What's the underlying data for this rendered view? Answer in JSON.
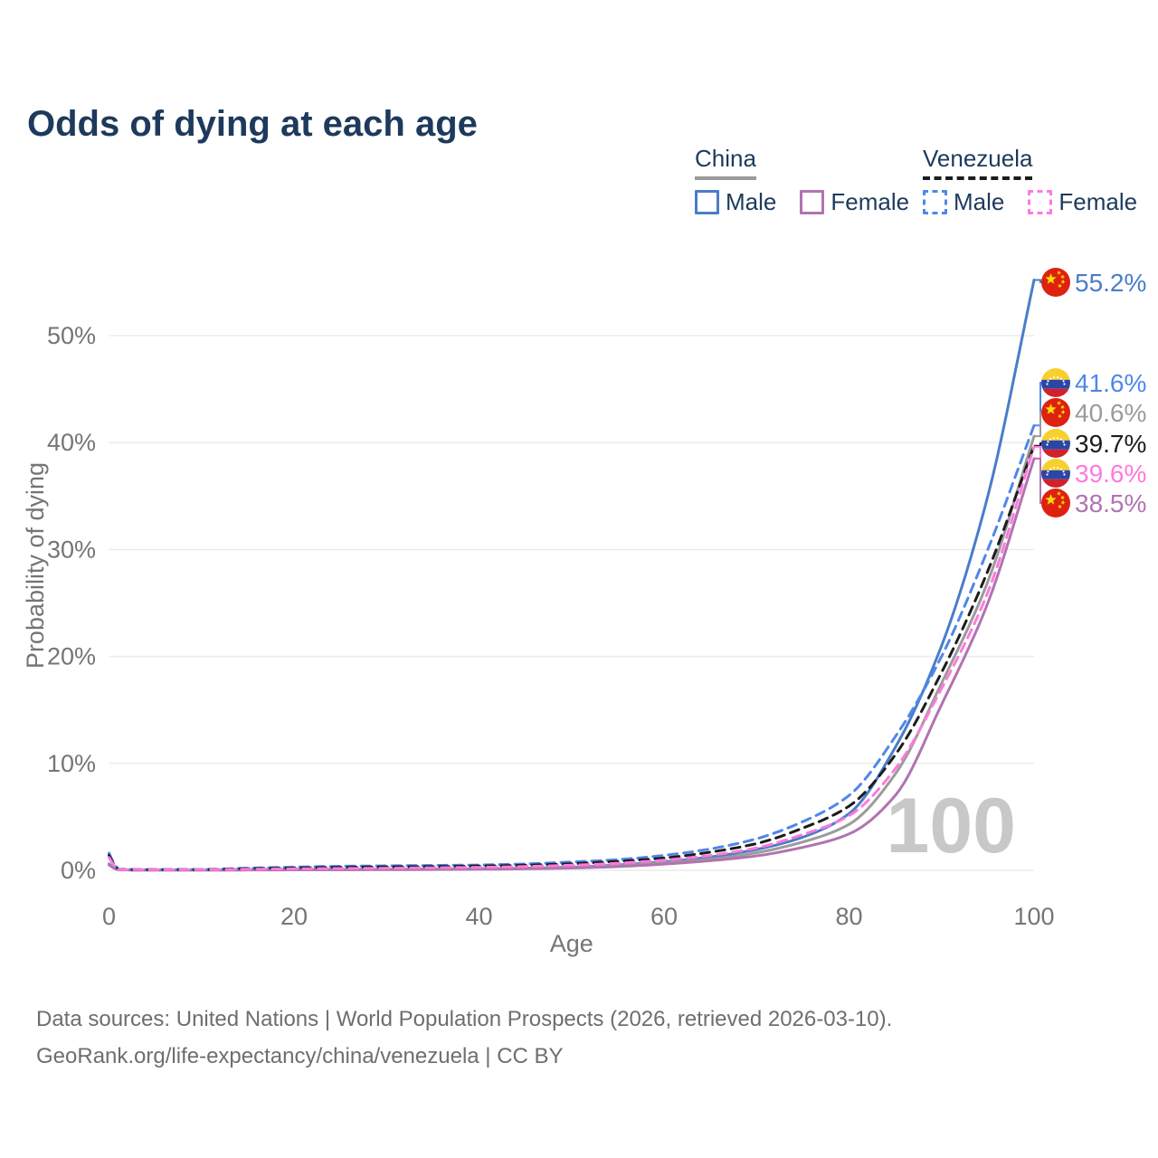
{
  "title": "Odds of dying at each age",
  "legend": {
    "groups": [
      {
        "name": "China",
        "line_style": "solid",
        "header_line_color": "#9a9a9a",
        "items": [
          {
            "label": "Male",
            "color": "#4a7dc9"
          },
          {
            "label": "Female",
            "color": "#b273b0"
          }
        ]
      },
      {
        "name": "Venezuela",
        "line_style": "dashed",
        "header_line_color": "#1c1c1c",
        "items": [
          {
            "label": "Male",
            "color": "#4e87ea"
          },
          {
            "label": "Female",
            "color": "#ff79dc"
          }
        ]
      }
    ]
  },
  "chart_data": {
    "type": "line",
    "title": "Odds of dying at each age",
    "xlabel": "Age",
    "ylabel": "Probability of dying",
    "xlim": [
      0,
      100
    ],
    "ylim": [
      0,
      56
    ],
    "x_ticks": [
      0,
      20,
      40,
      60,
      80,
      100
    ],
    "y_ticks": [
      {
        "value": 0,
        "label": "0%"
      },
      {
        "value": 10,
        "label": "10%"
      },
      {
        "value": 20,
        "label": "20%"
      },
      {
        "value": 30,
        "label": "30%"
      },
      {
        "value": 40,
        "label": "40%"
      },
      {
        "value": 50,
        "label": "50%"
      }
    ],
    "grid": "horizontal-only",
    "legend_position": "top-right",
    "hover_age_watermark": "100",
    "x": [
      0,
      1,
      5,
      10,
      15,
      20,
      25,
      30,
      35,
      40,
      45,
      50,
      55,
      60,
      65,
      70,
      75,
      80,
      85,
      90,
      95,
      100
    ],
    "series": [
      {
        "name": "China Male",
        "country": "China",
        "sex": "male",
        "flag": "china-flag-icon",
        "color": "#4a7dc9",
        "dash": "solid",
        "end_label": "55.2%",
        "end_value": 55.2,
        "values": [
          0.6,
          0.05,
          0.03,
          0.03,
          0.05,
          0.07,
          0.08,
          0.09,
          0.11,
          0.14,
          0.2,
          0.3,
          0.5,
          0.8,
          1.25,
          1.95,
          3.1,
          5.3,
          11.5,
          21,
          35,
          55.2
        ]
      },
      {
        "name": "Venezuela Male",
        "country": "Venezuela",
        "sex": "male",
        "flag": "venezuela-flag-icon",
        "color": "#4e87ea",
        "dash": "dashed",
        "end_label": "41.6%",
        "end_value": 41.6,
        "values": [
          1.6,
          0.1,
          0.07,
          0.08,
          0.2,
          0.3,
          0.38,
          0.42,
          0.46,
          0.5,
          0.6,
          0.78,
          1.0,
          1.4,
          2.0,
          2.95,
          4.55,
          7.0,
          12.5,
          20,
          30,
          41.6
        ]
      },
      {
        "name": "China Both sexes",
        "country": "China",
        "sex": "both",
        "flag": "china-flag-icon",
        "color": "#9b9b9b",
        "dash": "solid",
        "end_label": "40.6%",
        "end_value": 40.6,
        "values": [
          0.55,
          0.05,
          0.03,
          0.03,
          0.04,
          0.06,
          0.07,
          0.08,
          0.1,
          0.12,
          0.17,
          0.26,
          0.43,
          0.7,
          1.05,
          1.65,
          2.65,
          4.3,
          9.0,
          17.5,
          27,
          40.6
        ]
      },
      {
        "name": "Venezuela Both sexes",
        "country": "Venezuela",
        "sex": "both",
        "flag": "venezuela-flag-icon",
        "color": "#1c1c1c",
        "dash": "dashed",
        "end_label": "39.7%",
        "end_value": 39.7,
        "values": [
          1.4,
          0.09,
          0.06,
          0.07,
          0.15,
          0.22,
          0.28,
          0.32,
          0.35,
          0.4,
          0.48,
          0.62,
          0.84,
          1.15,
          1.7,
          2.5,
          3.95,
          6.0,
          10.8,
          18.5,
          28,
          39.7
        ]
      },
      {
        "name": "Venezuela Female",
        "country": "Venezuela",
        "sex": "female",
        "flag": "venezuela-flag-icon",
        "color": "#ff79dc",
        "dash": "dashed",
        "end_label": "39.6%",
        "end_value": 39.6,
        "values": [
          1.2,
          0.08,
          0.05,
          0.06,
          0.1,
          0.14,
          0.17,
          0.2,
          0.24,
          0.28,
          0.36,
          0.48,
          0.66,
          0.95,
          1.4,
          2.1,
          3.35,
          5.1,
          9.5,
          17,
          26,
          39.6
        ]
      },
      {
        "name": "China Female",
        "country": "China",
        "sex": "female",
        "flag": "china-flag-icon",
        "color": "#b273b0",
        "dash": "solid",
        "end_label": "38.5%",
        "end_value": 38.5,
        "values": [
          0.5,
          0.04,
          0.02,
          0.02,
          0.03,
          0.04,
          0.05,
          0.06,
          0.08,
          0.1,
          0.14,
          0.21,
          0.35,
          0.58,
          0.9,
          1.35,
          2.15,
          3.4,
          7.0,
          15.5,
          25,
          38.5
        ]
      }
    ]
  },
  "colors": {
    "title_text": "#1d3a5c",
    "axis_text": "#757575",
    "gridline": "#ebebeb",
    "watermark": "#c8c8c8",
    "footer_text": "#6e6e6e",
    "china_flag_red": "#de2110",
    "china_flag_yellow": "#ffde00",
    "venezuela_flag_yellow": "#f7d02e",
    "venezuela_flag_blue": "#2b46a5",
    "venezuela_flag_red": "#d0212d"
  },
  "footer": {
    "line1": "Data sources: United Nations | World Population Prospects (2026, retrieved 2026-03-10).",
    "line2": "GeoRank.org/life-expectancy/china/venezuela | CC BY"
  }
}
